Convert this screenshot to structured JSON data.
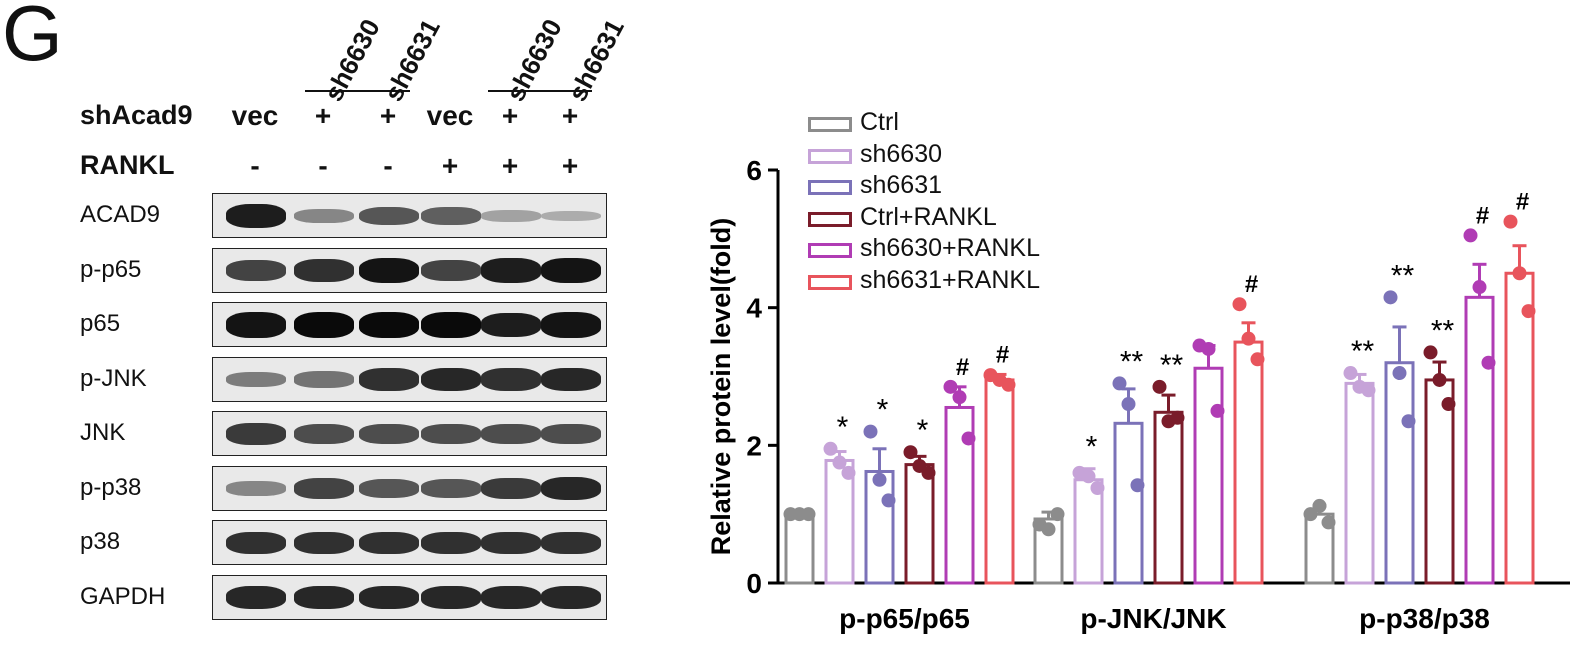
{
  "panel_letter": "G",
  "blot": {
    "lane_headers": [
      "sh6630",
      "sh6631",
      "sh6630",
      "sh6631"
    ],
    "rows": [
      {
        "title": "shAcad9",
        "cells": [
          "vec",
          "+",
          "+",
          "vec",
          "+",
          "+"
        ]
      },
      {
        "title": "RANKL",
        "cells": [
          "-",
          "-",
          "-",
          "+",
          "+",
          "+"
        ]
      }
    ],
    "blots": [
      {
        "label": "ACAD9",
        "bands": [
          0.9,
          0.35,
          0.6,
          0.55,
          0.2,
          0.15
        ]
      },
      {
        "label": "p-p65",
        "bands": [
          0.7,
          0.8,
          0.95,
          0.7,
          0.9,
          0.95
        ]
      },
      {
        "label": "p65",
        "bands": [
          0.95,
          1.0,
          1.0,
          1.0,
          0.9,
          0.95
        ]
      },
      {
        "label": "p-JNK",
        "bands": [
          0.4,
          0.45,
          0.8,
          0.85,
          0.8,
          0.85
        ]
      },
      {
        "label": "JNK",
        "bands": [
          0.75,
          0.65,
          0.65,
          0.65,
          0.65,
          0.65
        ]
      },
      {
        "label": "p-p38",
        "bands": [
          0.35,
          0.7,
          0.6,
          0.6,
          0.75,
          0.85
        ]
      },
      {
        "label": "p38",
        "bands": [
          0.8,
          0.8,
          0.8,
          0.8,
          0.8,
          0.8
        ]
      },
      {
        "label": "GAPDH",
        "bands": [
          0.85,
          0.85,
          0.85,
          0.85,
          0.85,
          0.85
        ]
      }
    ]
  },
  "chart_data": {
    "type": "bar",
    "ylabel": "Relative protein level(fold)",
    "ylim": [
      0,
      6
    ],
    "yticks": [
      0,
      2,
      4,
      6
    ],
    "categories": [
      "p-p65/p65",
      "p-JNK/JNK",
      "p-p38/p38"
    ],
    "legend_position": "top-left",
    "series": [
      {
        "name": "Ctrl",
        "color": "#8c8c8c",
        "values": [
          1.0,
          0.93,
          1.0
        ],
        "errors": [
          0.02,
          0.1,
          0.12
        ],
        "points": [
          [
            1.0,
            1.0,
            1.0
          ],
          [
            0.85,
            0.78,
            1.0
          ],
          [
            1.0,
            1.12,
            0.88
          ]
        ],
        "marks": [
          "",
          "",
          ""
        ]
      },
      {
        "name": "sh6630",
        "color": "#c6a3d8",
        "values": [
          1.78,
          1.5,
          2.9
        ],
        "errors": [
          0.13,
          0.16,
          0.13
        ],
        "points": [
          [
            1.95,
            1.75,
            1.6
          ],
          [
            1.6,
            1.55,
            1.38
          ],
          [
            3.05,
            2.85,
            2.8
          ]
        ],
        "marks": [
          "*",
          "*",
          "**"
        ]
      },
      {
        "name": "sh6631",
        "color": "#7b72b8",
        "values": [
          1.62,
          2.32,
          3.2
        ],
        "errors": [
          0.33,
          0.5,
          0.52
        ],
        "points": [
          [
            2.2,
            1.5,
            1.2
          ],
          [
            2.9,
            2.6,
            1.42
          ],
          [
            4.15,
            3.05,
            2.35
          ]
        ],
        "marks": [
          "*",
          "**",
          "**"
        ]
      },
      {
        "name": "Ctrl+RANKL",
        "color": "#7a1c2a",
        "values": [
          1.72,
          2.48,
          2.95
        ],
        "errors": [
          0.12,
          0.25,
          0.26
        ],
        "points": [
          [
            1.9,
            1.7,
            1.6
          ],
          [
            2.85,
            2.35,
            2.4
          ],
          [
            3.35,
            2.95,
            2.6
          ]
        ],
        "marks": [
          "*",
          "**",
          "**"
        ]
      },
      {
        "name": "sh6630+RANKL",
        "color": "#b03cb4",
        "values": [
          2.55,
          3.12,
          4.15
        ],
        "errors": [
          0.3,
          0.33,
          0.48
        ],
        "points": [
          [
            2.85,
            2.7,
            2.1
          ],
          [
            3.45,
            3.4,
            2.5
          ],
          [
            5.05,
            4.3,
            3.2
          ]
        ],
        "marks": [
          "#",
          "",
          "#"
        ]
      },
      {
        "name": "sh6631+RANKL",
        "color": "#e8545c",
        "values": [
          2.95,
          3.5,
          4.5
        ],
        "errors": [
          0.08,
          0.28,
          0.4
        ],
        "points": [
          [
            3.02,
            2.95,
            2.88
          ],
          [
            4.05,
            3.55,
            3.25
          ],
          [
            5.25,
            4.5,
            3.95
          ]
        ],
        "marks": [
          "#",
          "#",
          "#"
        ]
      }
    ]
  }
}
